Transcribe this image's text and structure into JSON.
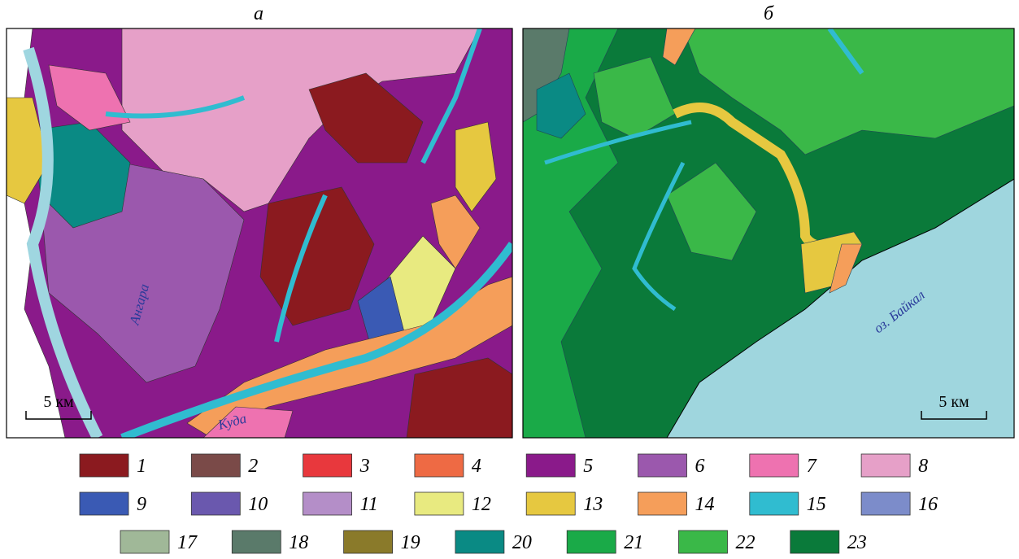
{
  "panels": [
    {
      "label": "а",
      "scale": "5 км",
      "places": [
        "Ангара",
        "Куда"
      ]
    },
    {
      "label": "б",
      "scale": "5 км",
      "places": [
        "оз. Байкал"
      ]
    }
  ],
  "legend": [
    {
      "label": "1",
      "color": "#8b1a1f"
    },
    {
      "label": "2",
      "color": "#7a4a48"
    },
    {
      "label": "3",
      "color": "#e8383d"
    },
    {
      "label": "4",
      "color": "#ee6a44"
    },
    {
      "label": "5",
      "color": "#8a1a8a"
    },
    {
      "label": "6",
      "color": "#9b58ad"
    },
    {
      "label": "7",
      "color": "#ee72b0"
    },
    {
      "label": "8",
      "color": "#e6a0c8"
    },
    {
      "label": "9",
      "color": "#3a5ab4"
    },
    {
      "label": "10",
      "color": "#6a58ae"
    },
    {
      "label": "11",
      "color": "#b48ec8"
    },
    {
      "label": "12",
      "color": "#e8ea80"
    },
    {
      "label": "13",
      "color": "#e6c840"
    },
    {
      "label": "14",
      "color": "#f59e5a"
    },
    {
      "label": "15",
      "color": "#30bcd0"
    },
    {
      "label": "16",
      "color": "#7c8cca"
    },
    {
      "label": "17",
      "color": "#a0b898"
    },
    {
      "label": "18",
      "color": "#5a7a6a"
    },
    {
      "label": "19",
      "color": "#8a7a2a"
    },
    {
      "label": "20",
      "color": "#0a8a84"
    },
    {
      "label": "21",
      "color": "#1aaa48"
    },
    {
      "label": "22",
      "color": "#3ab848"
    },
    {
      "label": "23",
      "color": "#0a7a3a"
    }
  ]
}
